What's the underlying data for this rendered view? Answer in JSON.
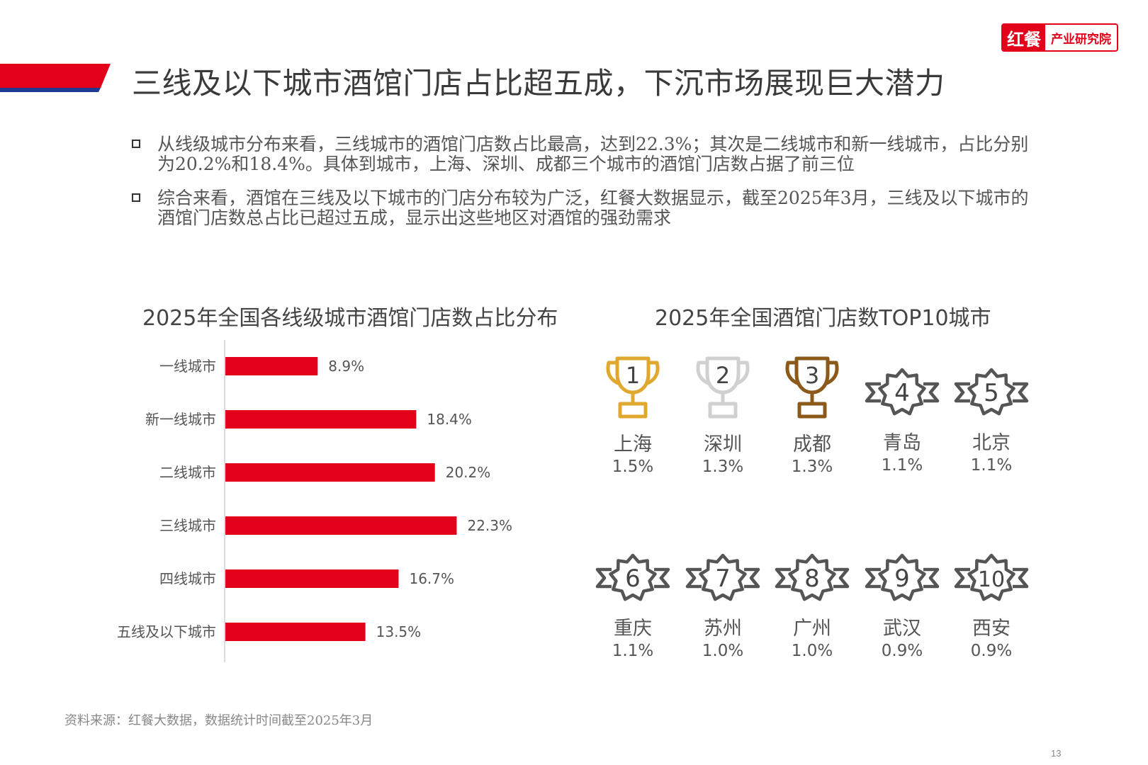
{
  "title": "三线及以下城市酒馆门店占比超五成，下沉市场展现巨大潜力",
  "brand": {
    "mark": "红餐",
    "sub": "产业研究院"
  },
  "bullets": [
    "从线级城市分布来看，三线城市的酒馆门店数占比最高，达到22.3%；其次是二线城市和新一线城市，占比分别为20.2%和18.4%。具体到城市，上海、深圳、成都三个城市的酒馆门店数占据了前三位",
    "综合来看，酒馆在三线及以下城市的门店分布较为广泛，红餐大数据显示，截至2025年3月，三线及以下城市的酒馆门店数总占比已超过五成，显示出这些地区对酒馆的强劲需求"
  ],
  "chart_data": [
    {
      "type": "bar",
      "orientation": "horizontal",
      "title": "2025年全国各线级城市酒馆门店数占比分布",
      "categories": [
        "一线城市",
        "新一线城市",
        "二线城市",
        "三线城市",
        "四线城市",
        "五线及以下城市"
      ],
      "values": [
        8.9,
        18.4,
        20.2,
        22.3,
        16.7,
        13.5
      ],
      "value_labels": [
        "8.9%",
        "18.4%",
        "20.2%",
        "22.3%",
        "16.7%",
        "13.5%"
      ],
      "xlim": [
        0,
        25
      ],
      "grid": false,
      "bar_color": "#e2001a"
    },
    {
      "type": "table",
      "title": "2025年全国酒馆门店数TOP10城市",
      "items": [
        {
          "rank": "1",
          "city": "上海",
          "share": "1.5%",
          "icon": "trophy-gold-icon"
        },
        {
          "rank": "2",
          "city": "深圳",
          "share": "1.3%",
          "icon": "trophy-silver-icon"
        },
        {
          "rank": "3",
          "city": "成都",
          "share": "1.3%",
          "icon": "trophy-bronze-icon"
        },
        {
          "rank": "4",
          "city": "青岛",
          "share": "1.1%",
          "icon": "rank-badge-icon"
        },
        {
          "rank": "5",
          "city": "北京",
          "share": "1.1%",
          "icon": "rank-badge-icon"
        },
        {
          "rank": "6",
          "city": "重庆",
          "share": "1.1%",
          "icon": "rank-badge-icon"
        },
        {
          "rank": "7",
          "city": "苏州",
          "share": "1.0%",
          "icon": "rank-badge-icon"
        },
        {
          "rank": "8",
          "city": "广州",
          "share": "1.0%",
          "icon": "rank-badge-icon"
        },
        {
          "rank": "9",
          "city": "武汉",
          "share": "0.9%",
          "icon": "rank-badge-icon"
        },
        {
          "rank": "10",
          "city": "西安",
          "share": "0.9%",
          "icon": "rank-badge-icon"
        }
      ]
    }
  ],
  "source": "资料来源：红餐大数据，数据统计时间截至2025年3月",
  "page_number": "13",
  "colors": {
    "accent_red": "#e2001a",
    "accent_blue": "#1f3a93",
    "gold": "#e0a82e",
    "silver": "#d0d0d0",
    "bronze": "#8b5a1a",
    "badge": "#555555"
  }
}
